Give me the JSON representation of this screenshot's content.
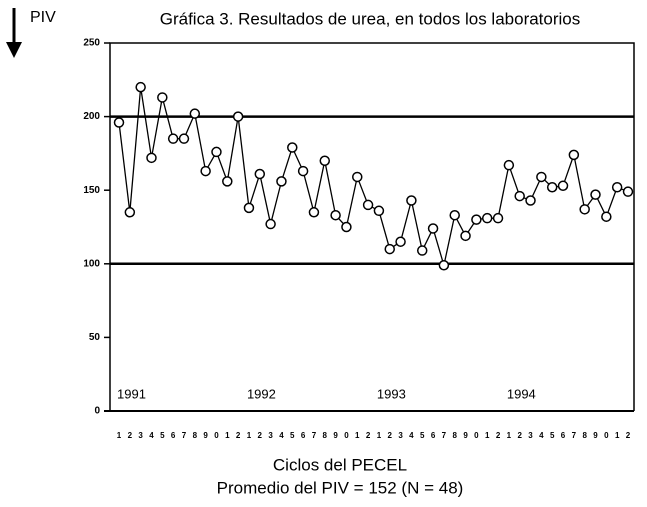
{
  "chart_data": {
    "type": "line",
    "title": "Gráfica 3. Resultados de urea, en todos los laboratorios",
    "y_label": "PIV",
    "x_label": "Ciclos del PECEL",
    "subtitle": "Promedio del PIV = 152 (N = 48)",
    "categories": [
      "1",
      "2",
      "3",
      "4",
      "5",
      "6",
      "7",
      "8",
      "9",
      "0",
      "1",
      "2",
      "1",
      "2",
      "3",
      "4",
      "5",
      "6",
      "7",
      "8",
      "9",
      "0",
      "1",
      "2",
      "1",
      "2",
      "3",
      "4",
      "5",
      "6",
      "7",
      "8",
      "9",
      "0",
      "1",
      "2",
      "1",
      "2",
      "3",
      "4",
      "5",
      "6",
      "7",
      "8",
      "9",
      "0",
      "1",
      "2"
    ],
    "series": [
      {
        "name": "PIV",
        "color": "#000000",
        "values": [
          196,
          135,
          220,
          172,
          213,
          185,
          185,
          202,
          163,
          176,
          156,
          200,
          138,
          161,
          127,
          156,
          179,
          163,
          135,
          170,
          133,
          125,
          159,
          140,
          136,
          110,
          115,
          143,
          109,
          124,
          99,
          133,
          119,
          130,
          131,
          131,
          167,
          146,
          143,
          159,
          152,
          153,
          174,
          137,
          147,
          132,
          152,
          149
        ]
      }
    ],
    "year_labels": [
      "1991",
      "1992",
      "1993",
      "1994"
    ],
    "reference_lines": [
      100,
      200
    ],
    "ylim": [
      0,
      250
    ],
    "yticks": [
      0,
      50,
      100,
      150,
      200,
      250
    ]
  }
}
